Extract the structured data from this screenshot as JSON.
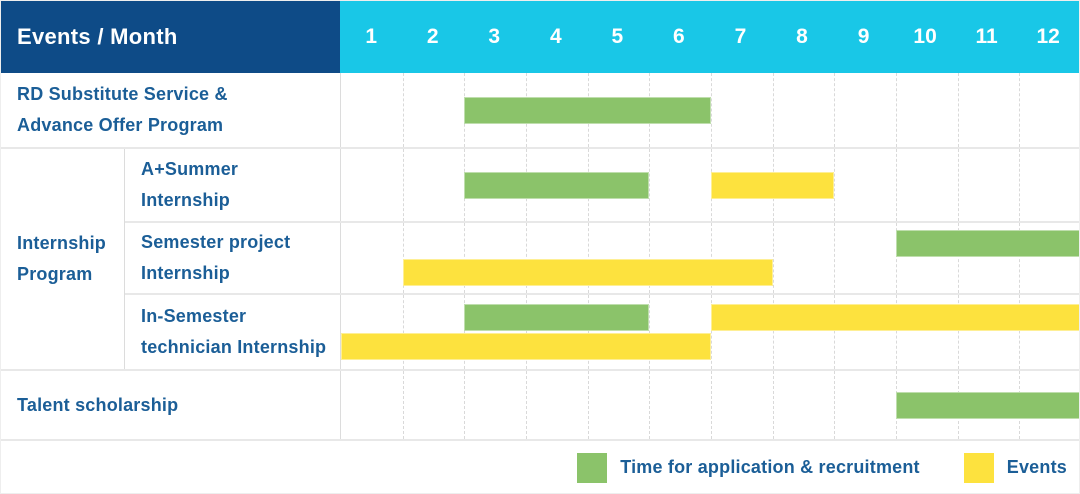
{
  "header": {
    "title": "Events / Month",
    "months": [
      "1",
      "2",
      "3",
      "4",
      "5",
      "6",
      "7",
      "8",
      "9",
      "10",
      "11",
      "12"
    ]
  },
  "group": {
    "label": "Internship\nProgram"
  },
  "colors": {
    "navy": "#0e4b87",
    "cyan": "#19c7e7",
    "green": "#8bc36a",
    "yellow": "#fde23e",
    "label_blue": "#1b5e97"
  },
  "chart_data": {
    "type": "gantt",
    "title": "Events / Month",
    "x_unit": "month",
    "x_range": [
      1,
      12
    ],
    "grid": "dashed-vertical",
    "legend_position": "bottom-right",
    "rows": [
      {
        "id": "rd-substitute",
        "label": "RD Substitute Service &\nAdvance Offer Program",
        "group": null,
        "bars": [
          {
            "type": "application",
            "start": 3,
            "end": 6,
            "line": "center"
          }
        ]
      },
      {
        "id": "a-plus-summer",
        "label": "A+Summer\nInternship",
        "group": "Internship Program",
        "bars": [
          {
            "type": "application",
            "start": 3,
            "end": 5,
            "line": "center"
          },
          {
            "type": "event",
            "start": 7,
            "end": 8,
            "line": "center"
          }
        ]
      },
      {
        "id": "semester-project",
        "label": "Semester project\nInternship",
        "group": "Internship Program",
        "bars": [
          {
            "type": "application",
            "start": 10,
            "end": 12,
            "line": "top"
          },
          {
            "type": "event",
            "start": 2,
            "end": 7,
            "line": "bottom"
          }
        ]
      },
      {
        "id": "in-semester",
        "label": "In-Semester\ntechnician Internship",
        "group": "Internship Program",
        "bars": [
          {
            "type": "application",
            "start": 3,
            "end": 5,
            "line": "top"
          },
          {
            "type": "event",
            "start": 7,
            "end": 12,
            "line": "top"
          },
          {
            "type": "event",
            "start": 1,
            "end": 6,
            "line": "bottom"
          }
        ]
      },
      {
        "id": "talent-scholarship",
        "label": "Talent scholarship",
        "group": null,
        "bars": [
          {
            "type": "application",
            "start": 10,
            "end": 12,
            "line": "center"
          }
        ]
      }
    ],
    "legend": [
      {
        "type": "application",
        "label": "Time for application & recruitment",
        "color": "#8bc36a"
      },
      {
        "type": "event",
        "label": "Events",
        "color": "#fde23e"
      }
    ]
  }
}
